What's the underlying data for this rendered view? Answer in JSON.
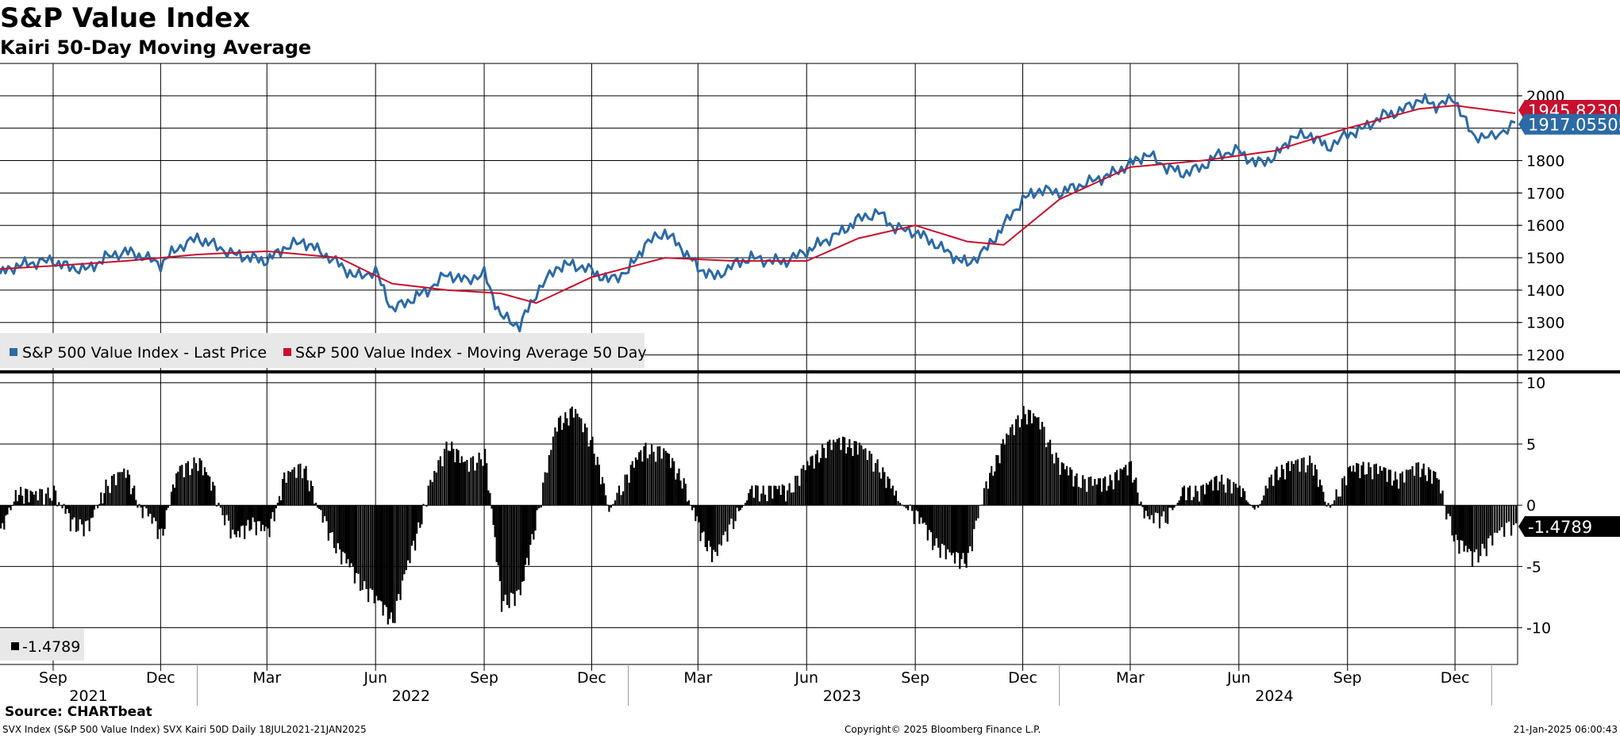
{
  "title": "S&P Value Index",
  "subtitle": "Kairi 50-Day Moving Average",
  "source": "Source: CHARTbeat",
  "footer": {
    "left": "SVX Index (S&P 500 Value Index) SVX Kairi 50D  Daily 18JUL2021-21JAN2025",
    "center": "Copyright© 2025 Bloomberg Finance L.P.",
    "right": "21-Jan-2025 06:00:43"
  },
  "colors": {
    "price": "#2b6aa6",
    "ma": "#c8102e",
    "kairi": "#000000",
    "grid": "#000000"
  },
  "chart_data": [
    {
      "type": "line",
      "ylim": [
        1150,
        2100
      ],
      "yticks": [
        1200,
        1300,
        1400,
        1500,
        1600,
        1700,
        1800,
        1900,
        2000
      ],
      "grid": true,
      "legend_position": "bottom-left",
      "series": [
        {
          "name": "S&P 500 Value Index - Last Price",
          "color": "#2b6aa6",
          "last_label": "1917.05505",
          "x": [
            "2021-07-18",
            "2021-08-01",
            "2021-08-15",
            "2021-09-01",
            "2021-09-15",
            "2021-10-01",
            "2021-10-15",
            "2021-11-01",
            "2021-11-15",
            "2021-12-01",
            "2021-12-15",
            "2022-01-01",
            "2022-01-15",
            "2022-02-01",
            "2022-02-15",
            "2022-03-01",
            "2022-03-15",
            "2022-04-01",
            "2022-04-15",
            "2022-05-01",
            "2022-05-15",
            "2022-06-01",
            "2022-06-15",
            "2022-07-01",
            "2022-07-15",
            "2022-08-01",
            "2022-08-15",
            "2022-09-01",
            "2022-09-15",
            "2022-10-01",
            "2022-10-15",
            "2022-11-01",
            "2022-11-15",
            "2022-12-01",
            "2022-12-15",
            "2023-01-01",
            "2023-01-15",
            "2023-02-01",
            "2023-02-15",
            "2023-03-01",
            "2023-03-15",
            "2023-04-01",
            "2023-04-15",
            "2023-05-01",
            "2023-05-15",
            "2023-06-01",
            "2023-06-15",
            "2023-07-01",
            "2023-07-15",
            "2023-08-01",
            "2023-08-15",
            "2023-09-01",
            "2023-09-15",
            "2023-10-01",
            "2023-10-15",
            "2023-11-01",
            "2023-11-15",
            "2023-12-01",
            "2023-12-15",
            "2024-01-01",
            "2024-01-15",
            "2024-02-01",
            "2024-02-15",
            "2024-03-01",
            "2024-03-15",
            "2024-04-01",
            "2024-04-15",
            "2024-05-01",
            "2024-05-15",
            "2024-06-01",
            "2024-06-15",
            "2024-07-01",
            "2024-07-15",
            "2024-08-01",
            "2024-08-15",
            "2024-09-01",
            "2024-09-15",
            "2024-10-01",
            "2024-10-15",
            "2024-11-01",
            "2024-11-15",
            "2024-12-01",
            "2024-12-15",
            "2025-01-01",
            "2025-01-21"
          ],
          "values": [
            1450,
            1475,
            1485,
            1490,
            1470,
            1465,
            1500,
            1520,
            1505,
            1480,
            1530,
            1560,
            1540,
            1510,
            1500,
            1490,
            1530,
            1550,
            1520,
            1480,
            1440,
            1460,
            1340,
            1370,
            1400,
            1450,
            1430,
            1450,
            1320,
            1290,
            1390,
            1470,
            1480,
            1460,
            1430,
            1460,
            1540,
            1580,
            1530,
            1470,
            1440,
            1480,
            1500,
            1490,
            1490,
            1520,
            1550,
            1580,
            1620,
            1640,
            1590,
            1580,
            1550,
            1510,
            1480,
            1530,
            1600,
            1680,
            1710,
            1700,
            1720,
            1740,
            1760,
            1790,
            1820,
            1780,
            1760,
            1780,
            1820,
            1830,
            1790,
            1810,
            1870,
            1880,
            1840,
            1880,
            1900,
            1940,
            1950,
            1990,
            1970,
            1990,
            1880,
            1870,
            1917.05505
          ]
        },
        {
          "name": "S&P 500 Value Index - Moving Average 50 Day",
          "color": "#c8102e",
          "last_label": "1945.82303",
          "x": [
            "2021-07-18",
            "2021-09-01",
            "2021-11-01",
            "2022-01-01",
            "2022-03-01",
            "2022-05-01",
            "2022-06-15",
            "2022-08-01",
            "2022-09-15",
            "2022-10-15",
            "2022-12-01",
            "2023-02-01",
            "2023-04-01",
            "2023-06-01",
            "2023-07-15",
            "2023-09-01",
            "2023-10-15",
            "2023-11-15",
            "2024-01-01",
            "2024-03-01",
            "2024-05-01",
            "2024-07-01",
            "2024-09-01",
            "2024-11-01",
            "2024-12-01",
            "2025-01-21"
          ],
          "values": [
            1465,
            1475,
            1490,
            1510,
            1520,
            1500,
            1420,
            1400,
            1390,
            1360,
            1440,
            1500,
            1490,
            1490,
            1560,
            1600,
            1550,
            1540,
            1680,
            1780,
            1800,
            1830,
            1900,
            1960,
            1970,
            1945.82303
          ]
        }
      ]
    },
    {
      "type": "bar",
      "ylim": [
        -13,
        10.5
      ],
      "yticks": [
        -10,
        -5,
        0,
        5,
        10
      ],
      "grid": true,
      "legend_position": "bottom-left",
      "series": [
        {
          "name": "-1.4789",
          "color": "#000000",
          "last_label": "-1.4789",
          "x": [
            "2021-07-18",
            "2021-08-01",
            "2021-08-15",
            "2021-09-01",
            "2021-09-15",
            "2021-10-01",
            "2021-10-15",
            "2021-11-01",
            "2021-11-15",
            "2021-12-01",
            "2021-12-15",
            "2022-01-01",
            "2022-01-15",
            "2022-02-01",
            "2022-02-15",
            "2022-03-01",
            "2022-03-15",
            "2022-04-01",
            "2022-04-15",
            "2022-05-01",
            "2022-05-15",
            "2022-06-01",
            "2022-06-15",
            "2022-07-01",
            "2022-07-15",
            "2022-08-01",
            "2022-08-15",
            "2022-09-01",
            "2022-09-15",
            "2022-10-01",
            "2022-10-15",
            "2022-11-01",
            "2022-11-15",
            "2022-12-01",
            "2022-12-15",
            "2023-01-01",
            "2023-01-15",
            "2023-02-01",
            "2023-02-15",
            "2023-03-01",
            "2023-03-15",
            "2023-04-01",
            "2023-04-15",
            "2023-05-01",
            "2023-05-15",
            "2023-06-01",
            "2023-06-15",
            "2023-07-01",
            "2023-07-15",
            "2023-08-01",
            "2023-08-15",
            "2023-09-01",
            "2023-09-15",
            "2023-10-01",
            "2023-10-15",
            "2023-11-01",
            "2023-11-15",
            "2023-12-01",
            "2023-12-15",
            "2024-01-01",
            "2024-01-15",
            "2024-02-01",
            "2024-02-15",
            "2024-03-01",
            "2024-03-15",
            "2024-04-01",
            "2024-04-15",
            "2024-05-01",
            "2024-05-15",
            "2024-06-01",
            "2024-06-15",
            "2024-07-01",
            "2024-07-15",
            "2024-08-01",
            "2024-08-15",
            "2024-09-01",
            "2024-09-15",
            "2024-10-01",
            "2024-10-15",
            "2024-11-01",
            "2024-11-15",
            "2024-12-01",
            "2024-12-15",
            "2025-01-01",
            "2025-01-21"
          ],
          "values": [
            -2.5,
            1,
            0.5,
            1,
            -1.5,
            -2,
            1.5,
            2.5,
            -0.5,
            -2.5,
            2.5,
            3.5,
            1,
            -3,
            -1.5,
            -2.5,
            2,
            3,
            -1,
            -4,
            -6,
            -8,
            -9.5,
            -4,
            1,
            5,
            3,
            4,
            -8,
            -7.5,
            -1,
            6.5,
            7.5,
            5,
            -0.5,
            2.5,
            4.5,
            4,
            2,
            -2,
            -4.5,
            -1,
            1,
            1,
            1,
            3,
            4.5,
            5,
            4.5,
            3,
            0.5,
            -1,
            -3,
            -4.5,
            -4.5,
            2,
            5,
            7.5,
            6.5,
            3,
            2,
            1.5,
            2,
            3,
            -1.5,
            -1,
            1,
            1,
            2,
            1,
            -0.5,
            2.5,
            3,
            3.5,
            -0.5,
            2.5,
            3,
            2.5,
            2,
            3,
            2,
            -3,
            -4.5,
            -3,
            -1.4789
          ]
        }
      ]
    }
  ],
  "x_axis": {
    "month_ticks": [
      {
        "date": "2021-09-01",
        "label": "Sep"
      },
      {
        "date": "2021-12-01",
        "label": "Dec"
      },
      {
        "date": "2022-03-01",
        "label": "Mar"
      },
      {
        "date": "2022-06-01",
        "label": "Jun"
      },
      {
        "date": "2022-09-01",
        "label": "Sep"
      },
      {
        "date": "2022-12-01",
        "label": "Dec"
      },
      {
        "date": "2023-03-01",
        "label": "Mar"
      },
      {
        "date": "2023-06-01",
        "label": "Jun"
      },
      {
        "date": "2023-09-01",
        "label": "Sep"
      },
      {
        "date": "2023-12-01",
        "label": "Dec"
      },
      {
        "date": "2024-03-01",
        "label": "Mar"
      },
      {
        "date": "2024-06-01",
        "label": "Jun"
      },
      {
        "date": "2024-09-01",
        "label": "Sep"
      },
      {
        "date": "2024-12-01",
        "label": "Dec"
      }
    ],
    "year_labels": [
      {
        "date": "2021-10-01",
        "label": "2021"
      },
      {
        "date": "2022-07-01",
        "label": "2022"
      },
      {
        "date": "2023-07-01",
        "label": "2023"
      },
      {
        "date": "2024-07-01",
        "label": "2024"
      }
    ],
    "year_separators": [
      "2022-01-01",
      "2023-01-01",
      "2024-01-01",
      "2025-01-01"
    ],
    "range": [
      "2021-07-18",
      "2025-01-21"
    ]
  }
}
